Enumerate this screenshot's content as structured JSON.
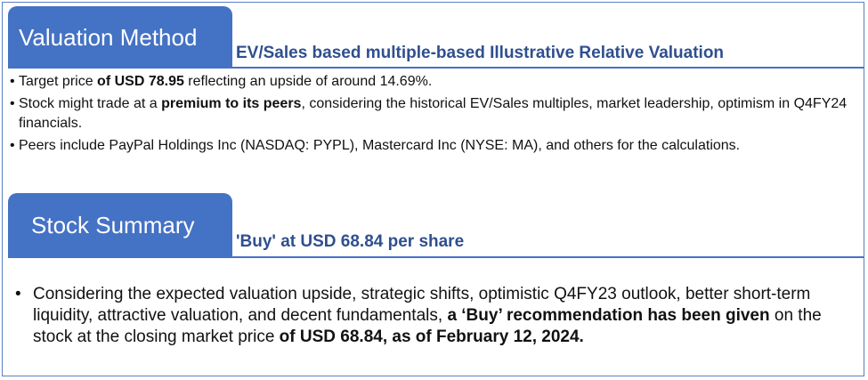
{
  "valuation": {
    "tab_title": "Valuation Method",
    "subtitle": "EV/Sales based multiple-based Illustrative Relative Valuation",
    "bullets": [
      {
        "bullet": "•",
        "parts": [
          "Target price ",
          "of USD 78.95",
          " reflecting an upside of around 14.69%."
        ]
      },
      {
        "bullet": "•",
        "parts": [
          " Stock might trade at a ",
          "premium to its peers",
          ", considering the historical EV/Sales multiples, market leadership, optimism in Q4FY24 financials."
        ]
      },
      {
        "bullet": "•",
        "parts": [
          " Peers include PayPal Holdings Inc (NASDAQ: PYPL), Mastercard Inc (NYSE: MA), and others for the calculations."
        ]
      }
    ]
  },
  "summary": {
    "tab_title": "Stock Summary",
    "subtitle": "'Buy' at USD 68.84 per share",
    "bullet": {
      "bullet": "•",
      "parts": [
        "Considering the expected valuation upside, strategic shifts,  optimistic Q4FY23 outlook, better short-term liquidity, attractive valuation, and decent fundamentals, ",
        "a ‘Buy’ recommendation has been given",
        " on the stock at the closing market price ",
        "of USD 68.84, as of February 12, 2024."
      ]
    }
  },
  "colors": {
    "tab_bg": "#4472c4",
    "subtitle": "#2f4f8f",
    "border": "#5a7fc4"
  }
}
